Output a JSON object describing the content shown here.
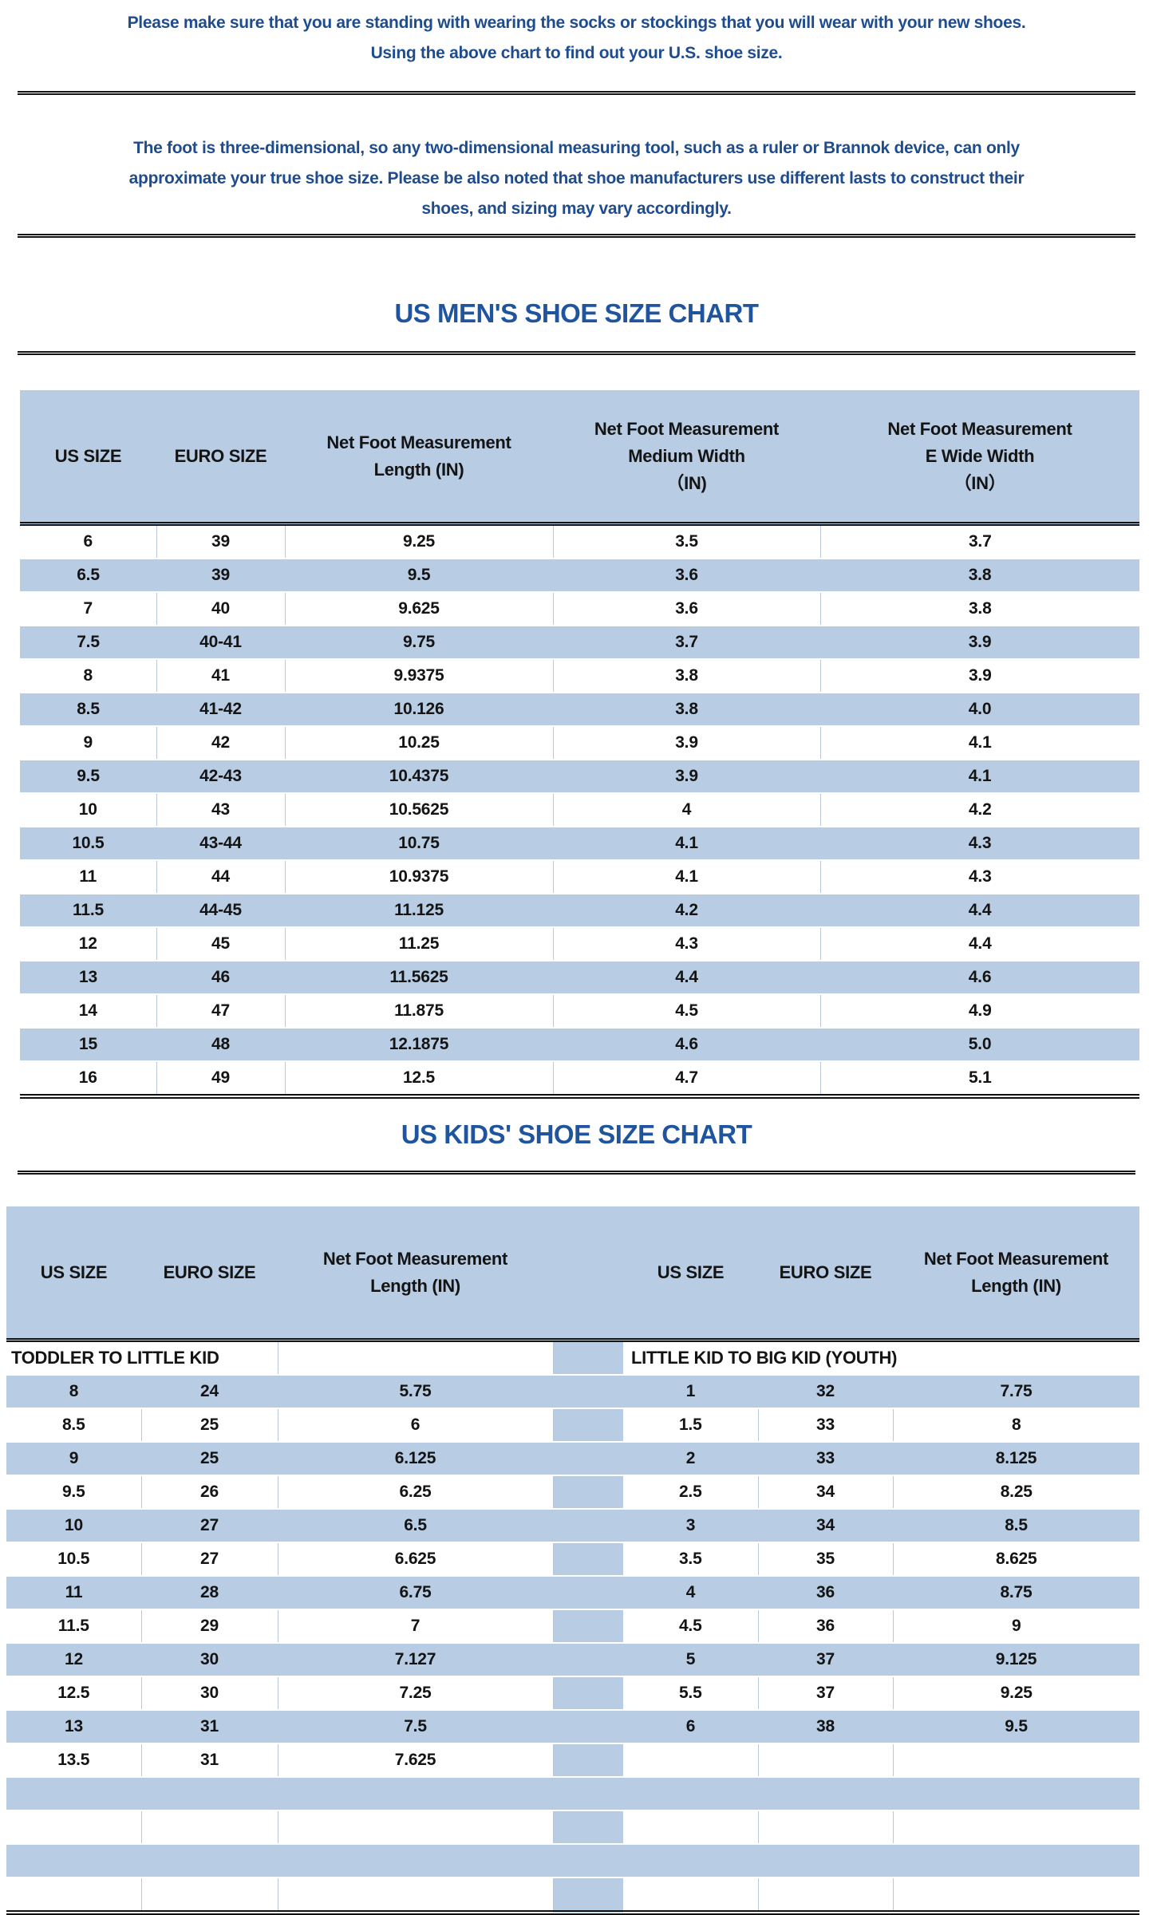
{
  "intro": {
    "lines": [
      "Please make sure that you are standing with wearing the socks or stockings that you will wear with your new shoes.",
      "Using the above chart to find out your U.S. shoe size."
    ]
  },
  "note": {
    "lines": [
      "The foot is three-dimensional, so any two-dimensional measuring tool, such as a ruler or Brannok device, can only",
      "approximate your true shoe size. Please be also noted that shoe manufacturers use different lasts to construct their",
      "shoes, and sizing may vary accordingly."
    ]
  },
  "mens_chart": {
    "title": "US MEN'S SHOE SIZE CHART",
    "columns": [
      "US SIZE",
      "EURO SIZE",
      "Net Foot Measurement\nLength (IN)",
      "Net Foot Measurement\nMedium Width\n（IN)",
      "Net Foot Measurement\nE Wide Width\n（IN）"
    ],
    "rows": [
      [
        "6",
        "39",
        "9.25",
        "3.5",
        "3.7"
      ],
      [
        "6.5",
        "39",
        "9.5",
        "3.6",
        "3.8"
      ],
      [
        "7",
        "40",
        "9.625",
        "3.6",
        "3.8"
      ],
      [
        "7.5",
        "40-41",
        "9.75",
        "3.7",
        "3.9"
      ],
      [
        "8",
        "41",
        "9.9375",
        "3.8",
        "3.9"
      ],
      [
        "8.5",
        "41-42",
        "10.126",
        "3.8",
        "4.0"
      ],
      [
        "9",
        "42",
        "10.25",
        "3.9",
        "4.1"
      ],
      [
        "9.5",
        "42-43",
        "10.4375",
        "3.9",
        "4.1"
      ],
      [
        "10",
        "43",
        "10.5625",
        "4",
        "4.2"
      ],
      [
        "10.5",
        "43-44",
        "10.75",
        "4.1",
        "4.3"
      ],
      [
        "11",
        "44",
        "10.9375",
        "4.1",
        "4.3"
      ],
      [
        "11.5",
        "44-45",
        "11.125",
        "4.2",
        "4.4"
      ],
      [
        "12",
        "45",
        "11.25",
        "4.3",
        "4.4"
      ],
      [
        "13",
        "46",
        "11.5625",
        "4.4",
        "4.6"
      ],
      [
        "14",
        "47",
        "11.875",
        "4.5",
        "4.9"
      ],
      [
        "15",
        "48",
        "12.1875",
        "4.6",
        "5.0"
      ],
      [
        "16",
        "49",
        "12.5",
        "4.7",
        "5.1"
      ]
    ]
  },
  "kids_chart": {
    "title": "US KIDS' SHOE SIZE CHART",
    "columns": [
      "US SIZE",
      "EURO SIZE",
      "Net Foot Measurement\nLength (IN)",
      "US SIZE",
      "EURO SIZE",
      "Net Foot Measurement\nLength (IN)"
    ],
    "sections": {
      "left": "TODDLER TO LITTLE KID",
      "right": "LITTLE KID TO BIG KID (YOUTH)"
    },
    "rows": [
      [
        "8",
        "24",
        "5.75",
        "1",
        "32",
        "7.75"
      ],
      [
        "8.5",
        "25",
        "6",
        "1.5",
        "33",
        "8"
      ],
      [
        "9",
        "25",
        "6.125",
        "2",
        "33",
        "8.125"
      ],
      [
        "9.5",
        "26",
        "6.25",
        "2.5",
        "34",
        "8.25"
      ],
      [
        "10",
        "27",
        "6.5",
        "3",
        "34",
        "8.5"
      ],
      [
        "10.5",
        "27",
        "6.625",
        "3.5",
        "35",
        "8.625"
      ],
      [
        "11",
        "28",
        "6.75",
        "4",
        "36",
        "8.75"
      ],
      [
        "11.5",
        "29",
        "7",
        "4.5",
        "36",
        "9"
      ],
      [
        "12",
        "30",
        "7.127",
        "5",
        "37",
        "9.125"
      ],
      [
        "12.5",
        "30",
        "7.25",
        "5.5",
        "37",
        "9.25"
      ],
      [
        "13",
        "31",
        "7.5",
        "6",
        "38",
        "9.5"
      ],
      [
        "13.5",
        "31",
        "7.625",
        "",
        "",
        ""
      ],
      [
        "",
        "",
        "",
        "",
        "",
        ""
      ],
      [
        "",
        "",
        "",
        "",
        "",
        ""
      ],
      [
        "",
        "",
        "",
        "",
        "",
        ""
      ],
      [
        "",
        "",
        "",
        "",
        "",
        ""
      ]
    ]
  },
  "colors": {
    "stripe_fill": "#b8cce4",
    "heading_blue": "#1f549e",
    "body_text_blue": "#1f4c8e",
    "table_text": "#141414",
    "rule_dark": "#141414",
    "cell_border": "#bac7db"
  }
}
